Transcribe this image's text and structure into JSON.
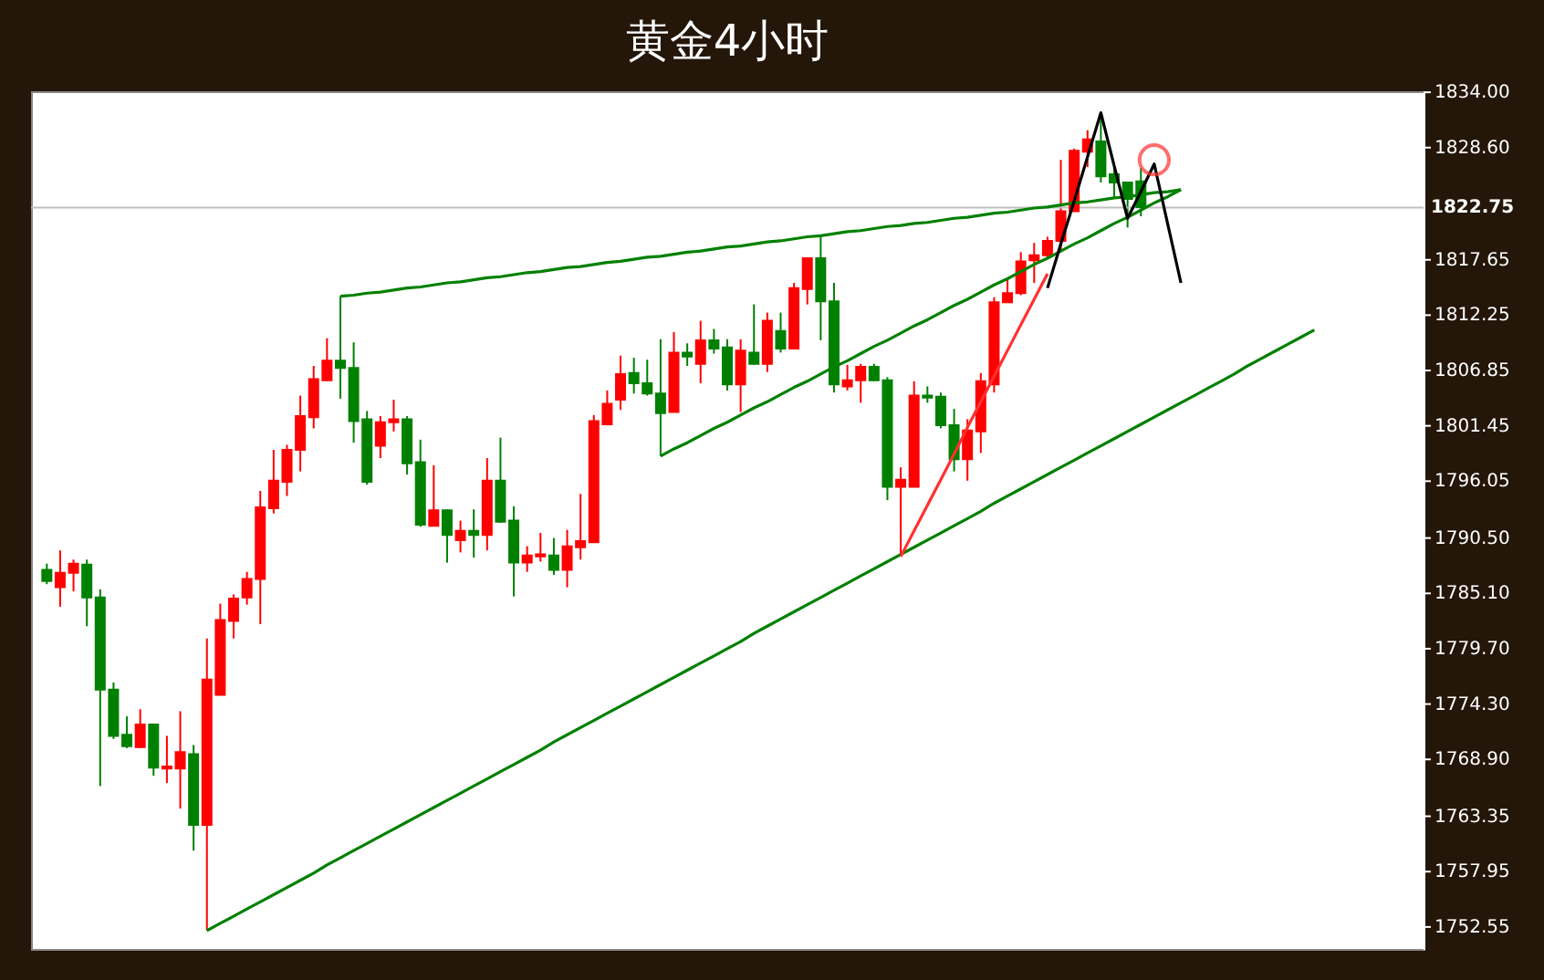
{
  "chart_data": {
    "type": "candlestick",
    "title": "黄金4小时",
    "categories": [
      null,
      null,
      null,
      null,
      null,
      null,
      null,
      null,
      null,
      null,
      null,
      null,
      null,
      null,
      null,
      null,
      null,
      null,
      null,
      null,
      null,
      null,
      null,
      null,
      null,
      null,
      null,
      null,
      null,
      null,
      null,
      null,
      null,
      null,
      null,
      null,
      null,
      null,
      null,
      null,
      null,
      null,
      null,
      null,
      null,
      null,
      null,
      null,
      null,
      null,
      null,
      null,
      null,
      null,
      null,
      null,
      null,
      null,
      null,
      null,
      null,
      null,
      null,
      null,
      null,
      null,
      null,
      null,
      null,
      null,
      null,
      null,
      null,
      null,
      null,
      null,
      null,
      null,
      null,
      null,
      null,
      null,
      null,
      null,
      null,
      null,
      null,
      null,
      null,
      null,
      null,
      null,
      null,
      null,
      null,
      null,
      null,
      null,
      null,
      null,
      null,
      null,
      null
    ],
    "ohlc": [
      [
        1787.4,
        1788.0,
        1786.0,
        1786.3
      ],
      [
        1785.7,
        1789.3,
        1783.8,
        1787.1
      ],
      [
        1787.1,
        1788.4,
        1785.3,
        1788.0
      ],
      [
        1787.9,
        1788.4,
        1781.9,
        1784.7
      ],
      [
        1784.7,
        1785.5,
        1766.3,
        1775.7
      ],
      [
        1775.7,
        1776.4,
        1770.9,
        1771.2
      ],
      [
        1771.3,
        1773.1,
        1770.0,
        1770.2
      ],
      [
        1770.1,
        1773.8,
        1770.0,
        1772.3
      ],
      [
        1772.3,
        1772.3,
        1767.3,
        1768.1
      ],
      [
        1768.0,
        1771.2,
        1766.6,
        1768.2
      ],
      [
        1768.0,
        1773.6,
        1764.1,
        1769.6
      ],
      [
        1769.4,
        1770.3,
        1760.0,
        1762.5
      ],
      [
        1762.5,
        1780.7,
        1752.2,
        1776.7
      ],
      [
        1775.2,
        1784.1,
        1775.2,
        1782.5
      ],
      [
        1782.4,
        1785.0,
        1780.7,
        1784.6
      ],
      [
        1784.7,
        1787.2,
        1784.0,
        1786.5
      ],
      [
        1786.5,
        1795.1,
        1782.1,
        1793.5
      ],
      [
        1793.4,
        1799.1,
        1792.9,
        1796.1
      ],
      [
        1796.0,
        1799.6,
        1794.6,
        1799.1
      ],
      [
        1799.1,
        1804.4,
        1797.0,
        1802.4
      ],
      [
        1802.3,
        1807.3,
        1801.2,
        1806.0
      ],
      [
        1805.9,
        1810.0,
        1805.9,
        1807.8
      ],
      [
        1807.8,
        1814.1,
        1804.1,
        1807.1
      ],
      [
        1807.1,
        1809.6,
        1799.8,
        1801.9
      ],
      [
        1802.1,
        1802.9,
        1795.7,
        1796.0
      ],
      [
        1799.5,
        1802.4,
        1798.3,
        1801.8
      ],
      [
        1801.8,
        1804.0,
        1800.9,
        1802.1
      ],
      [
        1802.1,
        1802.4,
        1796.7,
        1797.8
      ],
      [
        1797.9,
        1800.1,
        1791.6,
        1791.8
      ],
      [
        1791.7,
        1797.6,
        1791.7,
        1793.2
      ],
      [
        1793.2,
        1793.3,
        1788.1,
        1790.8
      ],
      [
        1790.3,
        1792.2,
        1789.1,
        1791.2
      ],
      [
        1791.2,
        1793.3,
        1788.6,
        1790.8
      ],
      [
        1790.8,
        1798.3,
        1789.3,
        1796.1
      ],
      [
        1796.1,
        1800.3,
        1792.0,
        1792.1
      ],
      [
        1792.2,
        1793.6,
        1784.8,
        1788.1
      ],
      [
        1788.1,
        1789.7,
        1787.2,
        1788.8
      ],
      [
        1788.7,
        1791.0,
        1788.2,
        1788.9
      ],
      [
        1788.8,
        1790.5,
        1786.9,
        1787.4
      ],
      [
        1787.4,
        1791.3,
        1785.7,
        1789.7
      ],
      [
        1789.6,
        1794.8,
        1788.4,
        1790.2
      ],
      [
        1790.1,
        1802.5,
        1790.1,
        1801.9
      ],
      [
        1801.6,
        1804.9,
        1801.5,
        1803.6
      ],
      [
        1804.0,
        1808.3,
        1803.0,
        1806.5
      ],
      [
        1806.6,
        1808.1,
        1804.6,
        1805.6
      ],
      [
        1805.6,
        1807.9,
        1804.4,
        1804.6
      ],
      [
        1804.6,
        1809.9,
        1798.5,
        1802.7
      ],
      [
        1802.8,
        1810.6,
        1802.8,
        1808.6
      ],
      [
        1808.6,
        1809.5,
        1807.3,
        1808.2
      ],
      [
        1807.5,
        1811.7,
        1805.6,
        1809.8
      ],
      [
        1809.8,
        1810.9,
        1808.5,
        1809.0
      ],
      [
        1809.1,
        1809.9,
        1804.9,
        1805.5
      ],
      [
        1805.5,
        1809.9,
        1802.8,
        1808.8
      ],
      [
        1808.6,
        1813.3,
        1807.4,
        1807.5
      ],
      [
        1807.5,
        1812.5,
        1806.7,
        1811.7
      ],
      [
        1810.7,
        1812.5,
        1808.6,
        1809.0
      ],
      [
        1809.0,
        1815.4,
        1809.0,
        1814.9
      ],
      [
        1814.8,
        1817.8,
        1813.3,
        1817.8
      ],
      [
        1817.8,
        1819.9,
        1809.8,
        1813.6
      ],
      [
        1813.6,
        1815.4,
        1804.7,
        1805.5
      ],
      [
        1805.3,
        1807.4,
        1804.9,
        1805.9
      ],
      [
        1805.9,
        1807.5,
        1803.7,
        1807.2
      ],
      [
        1807.2,
        1807.5,
        1805.8,
        1805.9
      ],
      [
        1805.9,
        1806.2,
        1794.2,
        1795.5
      ],
      [
        1795.5,
        1797.4,
        1788.7,
        1796.2
      ],
      [
        1795.5,
        1805.8,
        1795.5,
        1804.4
      ],
      [
        1804.4,
        1805.3,
        1803.7,
        1804.2
      ],
      [
        1804.3,
        1804.7,
        1801.2,
        1801.5
      ],
      [
        1801.5,
        1803.1,
        1797.0,
        1798.2
      ],
      [
        1798.2,
        1802.1,
        1796.1,
        1801.0
      ],
      [
        1800.9,
        1806.6,
        1798.8,
        1805.8
      ],
      [
        1805.5,
        1814.0,
        1804.7,
        1813.5
      ],
      [
        1813.5,
        1815.7,
        1813.5,
        1814.4
      ],
      [
        1814.4,
        1818.4,
        1814.2,
        1817.5
      ],
      [
        1817.6,
        1819.3,
        1815.4,
        1818.1
      ],
      [
        1818.1,
        1819.9,
        1817.8,
        1819.5
      ],
      [
        1819.5,
        1827.4,
        1818.4,
        1822.4
      ],
      [
        1822.4,
        1828.5,
        1822.4,
        1828.3
      ],
      [
        1828.2,
        1830.3,
        1826.7,
        1829.4
      ],
      [
        1829.2,
        1831.8,
        1825.2,
        1825.8
      ],
      [
        1826.0,
        1826.7,
        1823.7,
        1825.2
      ],
      [
        1825.2,
        1825.2,
        1820.8,
        1823.6
      ],
      [
        1825.3,
        1826.6,
        1821.9,
        1822.8
      ],
      null,
      null,
      null,
      null,
      null,
      null,
      null,
      null,
      null,
      null,
      null,
      null,
      null,
      null,
      null,
      null,
      null,
      null,
      null,
      null
    ],
    "colors": [
      "#008000",
      "#ff0000",
      "#ff0000",
      "#008000",
      "#008000",
      "#008000",
      "#008000",
      "#ff0000",
      "#008000",
      "#ff0000",
      "#ff0000",
      "#008000",
      "#ff0000",
      "#ff0000",
      "#ff0000",
      "#ff0000",
      "#ff0000",
      "#ff0000",
      "#ff0000",
      "#ff0000",
      "#ff0000",
      "#ff0000",
      "#008000",
      "#008000",
      "#008000",
      "#ff0000",
      "#ff0000",
      "#008000",
      "#008000",
      "#ff0000",
      "#008000",
      "#ff0000",
      "#008000",
      "#ff0000",
      "#008000",
      "#008000",
      "#ff0000",
      "#ff0000",
      "#008000",
      "#ff0000",
      "#ff0000",
      "#ff0000",
      "#ff0000",
      "#ff0000",
      "#008000",
      "#008000",
      "#008000",
      "#ff0000",
      "#008000",
      "#ff0000",
      "#008000",
      "#008000",
      "#ff0000",
      "#008000",
      "#ff0000",
      "#008000",
      "#ff0000",
      "#ff0000",
      "#008000",
      "#008000",
      "#ff0000",
      "#ff0000",
      "#008000",
      "#008000",
      "#ff0000",
      "#ff0000",
      "#008000",
      "#008000",
      "#008000",
      "#ff0000",
      "#ff0000",
      "#ff0000",
      "#ff0000",
      "#ff0000",
      "#ff0000",
      "#ff0000",
      "#ff0000",
      "#ff0000",
      "#ff0000",
      "#008000",
      "#008000",
      "#008000",
      "#008000",
      null,
      null,
      null,
      null,
      null,
      null,
      null,
      null,
      null,
      null,
      null,
      null,
      null,
      null,
      null,
      null,
      null,
      null,
      null,
      null
    ],
    "ylim": [
      1750.4,
      1834.1
    ],
    "yticks": [
      {
        "value": 1752.55,
        "label": "1752.55"
      },
      {
        "value": 1757.95,
        "label": "1757.95"
      },
      {
        "value": 1763.35,
        "label": "1763.35"
      },
      {
        "value": 1768.9,
        "label": "1768.90"
      },
      {
        "value": 1774.3,
        "label": "1774.30"
      },
      {
        "value": 1779.7,
        "label": "1779.70"
      },
      {
        "value": 1785.1,
        "label": "1785.10"
      },
      {
        "value": 1790.5,
        "label": "1790.50"
      },
      {
        "value": 1796.05,
        "label": "1796.05"
      },
      {
        "value": 1801.45,
        "label": "1801.45"
      },
      {
        "value": 1806.85,
        "label": "1806.85"
      },
      {
        "value": 1812.25,
        "label": "1812.25"
      },
      {
        "value": 1817.65,
        "label": "1817.65"
      },
      {
        "value": 1828.6,
        "label": "1828.60"
      },
      {
        "value": 1834.0,
        "label": "1834.00"
      }
    ],
    "tick_labels": "y",
    "ref_lines": [
      {
        "axis": "y",
        "value": 1822.75,
        "label": "1822.75",
        "color": "#c0c0c0"
      }
    ],
    "series": [
      {
        "type": "line",
        "color": "#008000",
        "values": [
          null,
          null,
          null,
          null,
          null,
          null,
          null,
          null,
          null,
          null,
          null,
          null,
          null,
          null,
          null,
          null,
          null,
          null,
          null,
          null,
          null,
          null,
          1814.1,
          1814.2,
          1814.4,
          1814.5,
          1814.7,
          1814.9,
          1815.0,
          1815.2,
          1815.4,
          1815.5,
          1815.7,
          1815.9,
          1816.0,
          1816.2,
          1816.4,
          1816.5,
          1816.7,
          1816.9,
          1817.0,
          1817.2,
          1817.4,
          1817.5,
          1817.7,
          1817.9,
          1818.0,
          1818.2,
          1818.4,
          1818.5,
          1818.7,
          1818.9,
          1819.0,
          1819.2,
          1819.4,
          1819.5,
          1819.7,
          1819.9,
          1820.0,
          1820.2,
          1820.4,
          1820.5,
          1820.7,
          1820.9,
          1821.0,
          1821.2,
          1821.3,
          1821.5,
          1821.7,
          1821.8,
          1822.0,
          1822.2,
          1822.3,
          1822.5,
          1822.7,
          1822.8,
          1823.0,
          1823.2,
          1823.3,
          1823.5,
          1823.7,
          1823.8,
          1824.0,
          1824.2,
          1824.3,
          1824.5,
          null,
          null,
          null,
          null,
          null,
          null,
          null,
          null,
          null,
          null,
          null,
          null,
          null,
          null,
          null,
          null,
          null
        ]
      },
      {
        "type": "line",
        "color": "#008000",
        "values": [
          null,
          null,
          null,
          null,
          null,
          null,
          null,
          null,
          null,
          null,
          null,
          null,
          null,
          null,
          null,
          null,
          null,
          null,
          null,
          null,
          null,
          null,
          null,
          null,
          null,
          null,
          null,
          null,
          null,
          null,
          null,
          null,
          null,
          null,
          null,
          null,
          null,
          null,
          null,
          null,
          null,
          null,
          null,
          null,
          null,
          null,
          1798.5,
          1799.2,
          1799.8,
          1800.5,
          1801.2,
          1801.8,
          1802.5,
          1803.2,
          1803.8,
          1804.5,
          1805.2,
          1805.8,
          1806.5,
          1807.2,
          1807.8,
          1808.5,
          1809.2,
          1809.8,
          1810.5,
          1811.2,
          1811.8,
          1812.5,
          1813.2,
          1813.8,
          1814.5,
          1815.2,
          1815.8,
          1816.5,
          1817.2,
          1817.8,
          1818.5,
          1819.2,
          1819.8,
          1820.5,
          1821.2,
          1821.8,
          1822.5,
          1823.2,
          1823.8,
          1824.5,
          null,
          null,
          null,
          null,
          null,
          null,
          null,
          null,
          null,
          null,
          null,
          null,
          null,
          null,
          null,
          null,
          null
        ]
      },
      {
        "type": "line",
        "color": "#008000",
        "values": [
          null,
          null,
          null,
          null,
          null,
          null,
          null,
          null,
          null,
          null,
          null,
          null,
          1752.2,
          1752.9,
          1753.6,
          1754.3,
          1755.0,
          1755.7,
          1756.4,
          1757.1,
          1757.8,
          1758.6,
          1759.3,
          1760.0,
          1760.7,
          1761.4,
          1762.1,
          1762.8,
          1763.5,
          1764.2,
          1764.9,
          1765.6,
          1766.3,
          1767.0,
          1767.7,
          1768.4,
          1769.1,
          1769.8,
          1770.6,
          1771.3,
          1772.0,
          1772.7,
          1773.4,
          1774.1,
          1774.8,
          1775.5,
          1776.2,
          1776.9,
          1777.6,
          1778.3,
          1779.0,
          1779.7,
          1780.4,
          1781.2,
          1781.9,
          1782.6,
          1783.3,
          1784.0,
          1784.7,
          1785.4,
          1786.1,
          1786.8,
          1787.5,
          1788.2,
          1788.9,
          1789.6,
          1790.3,
          1791.0,
          1791.7,
          1792.4,
          1793.1,
          1793.9,
          1794.6,
          1795.3,
          1796.0,
          1796.7,
          1797.4,
          1798.1,
          1798.8,
          1799.5,
          1800.2,
          1800.9,
          1801.6,
          1802.3,
          1803.0,
          1803.7,
          1804.4,
          1805.1,
          1805.8,
          1806.5,
          1807.3,
          1808.0,
          1808.7,
          1809.4,
          1810.1,
          1810.8,
          null,
          null,
          null,
          null,
          null,
          null,
          null
        ]
      },
      {
        "type": "line",
        "color": "#ff3030",
        "values": [
          null,
          null,
          null,
          null,
          null,
          null,
          null,
          null,
          null,
          null,
          null,
          null,
          null,
          null,
          null,
          null,
          null,
          null,
          null,
          null,
          null,
          null,
          null,
          null,
          null,
          null,
          null,
          null,
          null,
          null,
          null,
          null,
          null,
          null,
          null,
          null,
          null,
          null,
          null,
          null,
          null,
          null,
          null,
          null,
          null,
          null,
          null,
          null,
          null,
          null,
          null,
          null,
          null,
          null,
          null,
          null,
          null,
          null,
          null,
          null,
          null,
          null,
          null,
          null,
          1788.7,
          1791.2,
          1793.7,
          1796.2,
          1798.7,
          1801.3,
          1803.8,
          1806.3,
          1808.8,
          1811.3,
          1813.8,
          1816.3,
          null,
          null,
          null,
          null,
          null,
          null,
          null,
          null,
          null,
          null,
          null,
          null,
          null,
          null,
          null,
          null,
          null,
          null,
          null,
          null,
          null,
          null,
          null,
          null,
          null,
          null,
          null
        ]
      },
      {
        "type": "line",
        "color": "#000000",
        "values": [
          null,
          null,
          null,
          null,
          null,
          null,
          null,
          null,
          null,
          null,
          null,
          null,
          null,
          null,
          null,
          null,
          null,
          null,
          null,
          null,
          null,
          null,
          null,
          null,
          null,
          null,
          null,
          null,
          null,
          null,
          null,
          null,
          null,
          null,
          null,
          null,
          null,
          null,
          null,
          null,
          null,
          null,
          null,
          null,
          null,
          null,
          null,
          null,
          null,
          null,
          null,
          null,
          null,
          null,
          null,
          null,
          null,
          null,
          null,
          null,
          null,
          null,
          null,
          null,
          null,
          null,
          null,
          null,
          null,
          null,
          null,
          null,
          null,
          null,
          null,
          1814.9,
          1819.2,
          1823.4,
          1827.7,
          1832.0,
          1826.8,
          1821.7,
          1824.3,
          1827.0,
          1821.2,
          1815.4,
          null,
          null,
          null,
          null,
          null,
          null,
          null,
          null,
          null,
          null,
          null,
          null,
          null,
          null,
          null,
          null,
          null
        ]
      },
      {
        "type": "scatter",
        "color": "#ff3030",
        "marker": "circle",
        "values": [
          null,
          null,
          null,
          null,
          null,
          null,
          null,
          null,
          null,
          null,
          null,
          null,
          null,
          null,
          null,
          null,
          null,
          null,
          null,
          null,
          null,
          null,
          null,
          null,
          null,
          null,
          null,
          null,
          null,
          null,
          null,
          null,
          null,
          null,
          null,
          null,
          null,
          null,
          null,
          null,
          null,
          null,
          null,
          null,
          null,
          null,
          null,
          null,
          null,
          null,
          null,
          null,
          null,
          null,
          null,
          null,
          null,
          null,
          null,
          null,
          null,
          null,
          null,
          null,
          null,
          null,
          null,
          null,
          null,
          null,
          null,
          null,
          null,
          null,
          null,
          null,
          null,
          null,
          null,
          null,
          null,
          null,
          null,
          1827.4,
          null,
          null,
          null,
          null,
          null,
          null,
          null,
          null,
          null,
          null,
          null,
          null,
          null,
          null,
          null,
          null,
          null,
          null,
          null
        ]
      }
    ]
  }
}
